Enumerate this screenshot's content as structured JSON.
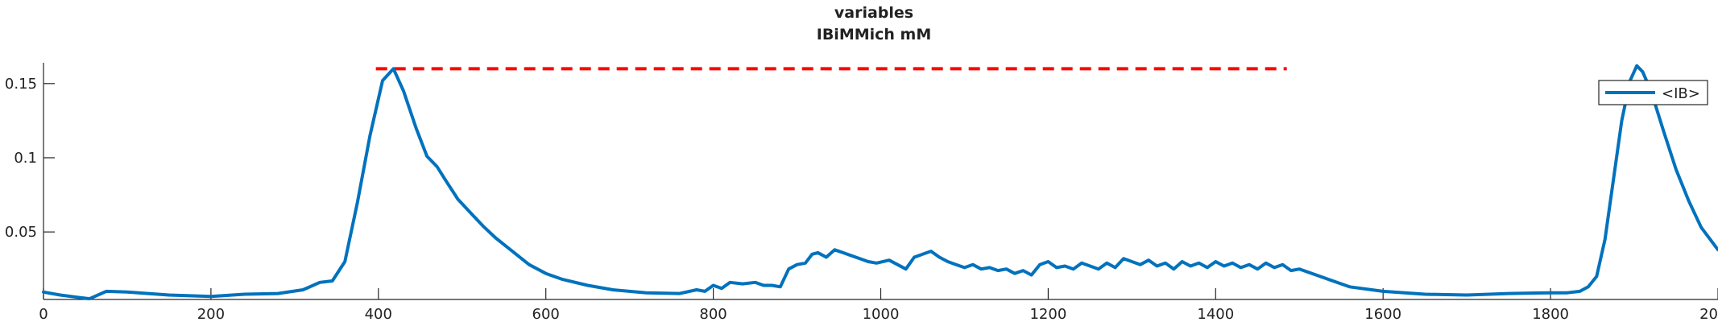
{
  "chart_data": {
    "type": "line",
    "title": "variables",
    "subtitle": "IBiMMich mM",
    "xlabel": "",
    "ylabel": "",
    "xlim": [
      0,
      2000
    ],
    "ylim": [
      0.0045,
      0.164
    ],
    "x_ticks": [
      0,
      200,
      400,
      600,
      800,
      1000,
      1200,
      1400,
      1600,
      1800,
      2000
    ],
    "x_tick_labels": [
      "0",
      "200",
      "400",
      "600",
      "800",
      "1000",
      "1200",
      "1400",
      "1600",
      "1800",
      "2000"
    ],
    "y_ticks": [
      0.05,
      0.1,
      0.15
    ],
    "y_tick_labels": [
      "0.05",
      "0.1",
      "0.15"
    ],
    "grid": false,
    "legend": {
      "placement": "top-right",
      "entries": [
        "<IB>"
      ]
    },
    "colors": {
      "series": "#0072BD",
      "reference": "#FF0000",
      "axis": "#262626"
    },
    "reference_line": {
      "y": 0.16,
      "x_start": 397,
      "x_end": 1485,
      "style": "dashed"
    },
    "series": [
      {
        "name": "<IB>",
        "x": [
          0,
          20,
          40,
          55,
          75,
          100,
          150,
          200,
          240,
          280,
          310,
          330,
          345,
          360,
          375,
          390,
          405,
          418,
          430,
          445,
          458,
          470,
          480,
          495,
          510,
          525,
          540,
          560,
          580,
          600,
          620,
          650,
          680,
          720,
          760,
          780,
          790,
          800,
          810,
          820,
          835,
          850,
          860,
          870,
          880,
          890,
          900,
          910,
          918,
          925,
          935,
          945,
          955,
          965,
          975,
          985,
          995,
          1010,
          1020,
          1030,
          1040,
          1050,
          1060,
          1070,
          1080,
          1090,
          1100,
          1110,
          1120,
          1130,
          1140,
          1150,
          1160,
          1170,
          1180,
          1190,
          1200,
          1210,
          1220,
          1230,
          1240,
          1250,
          1260,
          1270,
          1280,
          1290,
          1300,
          1310,
          1320,
          1330,
          1340,
          1350,
          1360,
          1370,
          1380,
          1390,
          1400,
          1410,
          1420,
          1430,
          1440,
          1450,
          1460,
          1470,
          1480,
          1490,
          1500,
          1530,
          1560,
          1600,
          1650,
          1700,
          1750,
          1800,
          1820,
          1835,
          1845,
          1855,
          1865,
          1875,
          1885,
          1895,
          1903,
          1910,
          1920,
          1935,
          1950,
          1965,
          1980,
          2000
        ],
        "y": [
          0.0095,
          0.0075,
          0.006,
          0.005,
          0.01,
          0.0095,
          0.0075,
          0.0065,
          0.008,
          0.0085,
          0.011,
          0.016,
          0.017,
          0.03,
          0.07,
          0.115,
          0.152,
          0.16,
          0.145,
          0.12,
          0.101,
          0.094,
          0.085,
          0.072,
          0.063,
          0.054,
          0.046,
          0.037,
          0.028,
          0.022,
          0.018,
          0.014,
          0.011,
          0.009,
          0.0085,
          0.011,
          0.01,
          0.014,
          0.012,
          0.016,
          0.015,
          0.016,
          0.014,
          0.014,
          0.013,
          0.025,
          0.028,
          0.029,
          0.035,
          0.036,
          0.033,
          0.038,
          0.036,
          0.034,
          0.032,
          0.03,
          0.029,
          0.031,
          0.028,
          0.025,
          0.033,
          0.035,
          0.037,
          0.033,
          0.03,
          0.028,
          0.026,
          0.028,
          0.025,
          0.026,
          0.024,
          0.025,
          0.022,
          0.024,
          0.021,
          0.028,
          0.03,
          0.026,
          0.027,
          0.025,
          0.029,
          0.027,
          0.025,
          0.029,
          0.026,
          0.032,
          0.03,
          0.028,
          0.031,
          0.027,
          0.029,
          0.025,
          0.03,
          0.027,
          0.029,
          0.026,
          0.03,
          0.027,
          0.029,
          0.026,
          0.028,
          0.025,
          0.029,
          0.026,
          0.028,
          0.024,
          0.025,
          0.019,
          0.013,
          0.01,
          0.008,
          0.0075,
          0.0085,
          0.009,
          0.009,
          0.01,
          0.013,
          0.02,
          0.045,
          0.085,
          0.125,
          0.152,
          0.162,
          0.158,
          0.145,
          0.118,
          0.092,
          0.071,
          0.053,
          0.038
        ]
      }
    ]
  }
}
